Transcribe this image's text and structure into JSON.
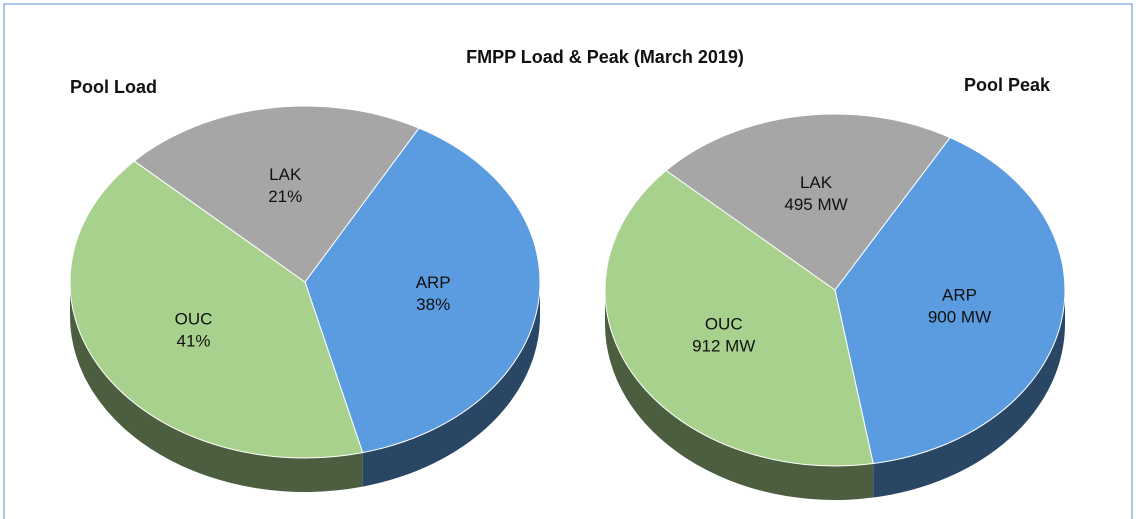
{
  "title": "FMPP Load & Peak (March 2019)",
  "chart_data": [
    {
      "type": "pie",
      "title": "Pool Load",
      "categories": [
        "ARP",
        "OUC",
        "LAK"
      ],
      "values": [
        38,
        41,
        21
      ],
      "value_labels": [
        "38%",
        "41%",
        "21%"
      ],
      "colors": [
        "#5b9be0",
        "#a9d18e",
        "#a6a6a6"
      ]
    },
    {
      "type": "pie",
      "title": "Pool Peak",
      "categories": [
        "ARP",
        "OUC",
        "LAK"
      ],
      "values": [
        900,
        912,
        495
      ],
      "value_labels": [
        "900 MW",
        "912 MW",
        "495 MW"
      ],
      "colors": [
        "#5b9be0",
        "#a9d18e",
        "#a6a6a6"
      ]
    }
  ]
}
